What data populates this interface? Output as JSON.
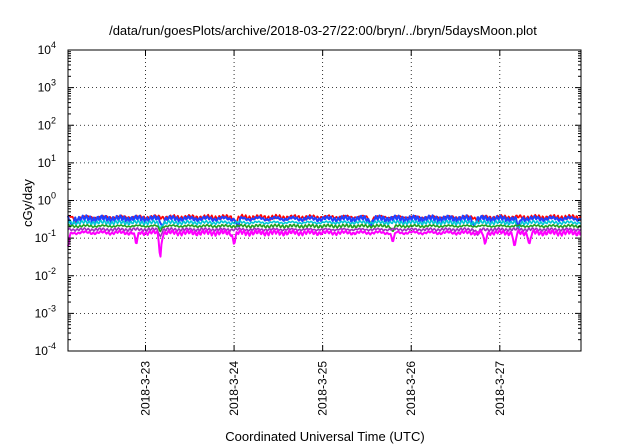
{
  "chart_data": {
    "type": "line",
    "title": "/data/run/goesPlots/archive/2018-03-27/22:00/bryn/../bryn/5daysMoon.plot",
    "xlabel": "Coordinated Universal Time (UTC)",
    "ylabel": "cGy/day",
    "yscale": "log",
    "ylim": [
      0.0001,
      10000
    ],
    "xlim": [
      "2018-03-22T03:00",
      "2018-03-27T22:00"
    ],
    "y_ticks": [
      {
        "base": "10",
        "exp": "-4"
      },
      {
        "base": "10",
        "exp": "-3"
      },
      {
        "base": "10",
        "exp": "-2"
      },
      {
        "base": "10",
        "exp": "-1"
      },
      {
        "base": "10",
        "exp": "0"
      },
      {
        "base": "10",
        "exp": "1"
      },
      {
        "base": "10",
        "exp": "2"
      },
      {
        "base": "10",
        "exp": "3"
      },
      {
        "base": "10",
        "exp": "4"
      }
    ],
    "x_ticks": [
      {
        "label": "2018-3-23",
        "date": "2018-03-23T00:00"
      },
      {
        "label": "2018-3-24",
        "date": "2018-03-24T00:00"
      },
      {
        "label": "2018-3-25",
        "date": "2018-03-25T00:00"
      },
      {
        "label": "2018-3-26",
        "date": "2018-03-26T00:00"
      },
      {
        "label": "2018-3-27",
        "date": "2018-03-27T00:00"
      }
    ],
    "grid": true,
    "series": [
      {
        "color": "#ff0000",
        "level": 0.36,
        "amp": 0.05,
        "phase": 0.0,
        "dips": [
          [
            "2018-03-22T05:00",
            0.26
          ],
          [
            "2018-03-24T00:30",
            0.25
          ],
          [
            "2018-03-25T13:00",
            0.25
          ],
          [
            "2018-03-26T18:00",
            0.26
          ]
        ]
      },
      {
        "color": "#2040ff",
        "level": 0.33,
        "amp": 0.06,
        "phase": 1.3,
        "dips": [
          [
            "2018-03-22T04:00",
            0.22
          ],
          [
            "2018-03-23T04:30",
            0.21
          ],
          [
            "2018-03-24T01:00",
            0.2
          ],
          [
            "2018-03-25T13:00",
            0.21
          ],
          [
            "2018-03-26T17:00",
            0.22
          ],
          [
            "2018-03-27T05:00",
            0.2
          ]
        ]
      },
      {
        "color": "#00c8d8",
        "level": 0.26,
        "amp": 0.03,
        "phase": 2.1,
        "dips": [
          [
            "2018-03-23T04:00",
            0.18
          ],
          [
            "2018-03-27T05:00",
            0.17
          ]
        ]
      },
      {
        "color": "#20a020",
        "level": 0.21,
        "amp": 0.02,
        "phase": 0.7,
        "dips": [
          [
            "2018-03-23T04:00",
            0.15
          ],
          [
            "2018-03-25T19:00",
            0.15
          ]
        ]
      },
      {
        "color": "#a030c0",
        "level": 0.17,
        "amp": 0.015,
        "phase": 2.9,
        "dips": [
          [
            "2018-03-23T04:00",
            0.11
          ],
          [
            "2018-03-26T18:00",
            0.12
          ]
        ]
      },
      {
        "color": "#ff00ff",
        "level": 0.14,
        "amp": 0.02,
        "phase": 1.8,
        "dips": [
          [
            "2018-03-22T03:00",
            0.06
          ],
          [
            "2018-03-22T21:30",
            0.07
          ],
          [
            "2018-03-23T04:00",
            0.03
          ],
          [
            "2018-03-24T00:00",
            0.07
          ],
          [
            "2018-03-25T19:00",
            0.08
          ],
          [
            "2018-03-26T20:00",
            0.07
          ],
          [
            "2018-03-27T04:00",
            0.06
          ],
          [
            "2018-03-27T08:00",
            0.07
          ]
        ]
      }
    ]
  }
}
